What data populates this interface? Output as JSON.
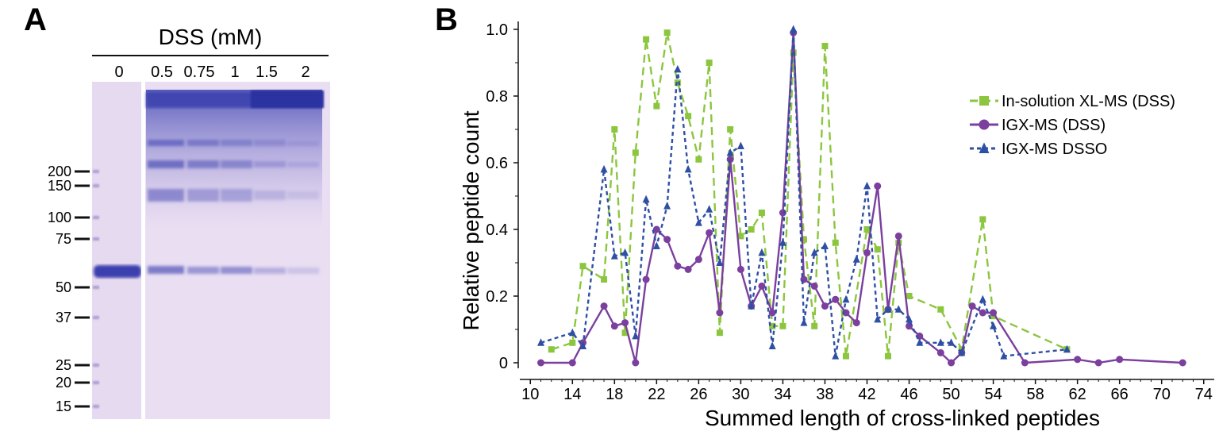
{
  "panels": {
    "a_label": "A",
    "b_label": "B"
  },
  "gel": {
    "title": "DSS (mM)",
    "lanes": [
      "0",
      "0.5",
      "0.75",
      "1",
      "1.5",
      "2"
    ],
    "markers": [
      "200",
      "150",
      "100",
      "75",
      "50",
      "37",
      "25",
      "20",
      "15"
    ],
    "colors": {
      "background": "#e9def2",
      "band": "#3b3fae"
    }
  },
  "chart_data": {
    "type": "line",
    "title": "",
    "xlabel": "Summed length of cross-linked peptides",
    "ylabel": "Relative peptide count",
    "xlim": [
      9,
      75
    ],
    "ylim": [
      0,
      1.0
    ],
    "xticks": [
      10,
      14,
      18,
      22,
      26,
      30,
      34,
      38,
      42,
      46,
      50,
      54,
      58,
      62,
      66,
      70,
      74
    ],
    "yticks": [
      0,
      0.2,
      0.4,
      0.6,
      0.8,
      1.0
    ],
    "ytick_labels": [
      "0",
      "0.2",
      "0.4",
      "0.6",
      "0.8",
      "1.0"
    ],
    "legend_position": "right",
    "series": [
      {
        "name": "In-solution XL-MS (DSS)",
        "color": "#8cc63f",
        "line": "long-dash",
        "marker": "square",
        "x": [
          12,
          14,
          15,
          17,
          18,
          19,
          20,
          21,
          22,
          23,
          24,
          25,
          26,
          27,
          28,
          29,
          30,
          31,
          32,
          33,
          34,
          35,
          36,
          37,
          38,
          39,
          40,
          42,
          43,
          44,
          45,
          46,
          49,
          51,
          53,
          54,
          61
        ],
        "y": [
          0.04,
          0.06,
          0.29,
          0.25,
          0.7,
          0.09,
          0.63,
          0.97,
          0.77,
          0.99,
          0.84,
          0.74,
          0.61,
          0.9,
          0.09,
          0.7,
          0.38,
          0.4,
          0.45,
          0.11,
          0.11,
          0.93,
          0.37,
          0.11,
          0.95,
          0.36,
          0.02,
          0.4,
          0.34,
          0.02,
          0.36,
          0.2,
          0.16,
          0.04,
          0.43,
          0.14,
          0.04
        ]
      },
      {
        "name": "IGX-MS (DSS)",
        "color": "#7b3f9e",
        "line": "solid",
        "marker": "circle",
        "x": [
          11,
          14,
          15,
          17,
          18,
          19,
          20,
          21,
          22,
          23,
          24,
          25,
          26,
          27,
          28,
          29,
          30,
          31,
          32,
          33,
          34,
          35,
          36,
          37,
          38,
          39,
          40,
          41,
          42,
          43,
          44,
          45,
          46,
          47,
          49,
          50,
          51,
          52,
          53,
          54,
          57,
          62,
          64,
          66,
          72
        ],
        "y": [
          0.0,
          0.0,
          0.06,
          0.17,
          0.11,
          0.12,
          0.0,
          0.25,
          0.4,
          0.37,
          0.29,
          0.28,
          0.31,
          0.39,
          0.15,
          0.61,
          0.28,
          0.17,
          0.23,
          0.15,
          0.45,
          0.99,
          0.25,
          0.23,
          0.17,
          0.19,
          0.15,
          0.12,
          0.33,
          0.53,
          0.16,
          0.38,
          0.11,
          0.08,
          0.03,
          0.0,
          0.03,
          0.17,
          0.15,
          0.15,
          0.0,
          0.01,
          0.0,
          0.01,
          0.0
        ]
      },
      {
        "name": "IGX-MS DSSO",
        "color": "#2e4fa3",
        "line": "short-dash",
        "marker": "triangle",
        "x": [
          11,
          14,
          15,
          17,
          18,
          19,
          20,
          21,
          22,
          23,
          24,
          25,
          26,
          27,
          28,
          29,
          30,
          31,
          32,
          33,
          34,
          35,
          36,
          37,
          38,
          39,
          40,
          41,
          42,
          43,
          44,
          45,
          46,
          47,
          49,
          50,
          51,
          53,
          54,
          55,
          61
        ],
        "y": [
          0.06,
          0.09,
          0.05,
          0.58,
          0.32,
          0.33,
          0.08,
          0.49,
          0.35,
          0.47,
          0.88,
          0.58,
          0.42,
          0.46,
          0.3,
          0.63,
          0.65,
          0.17,
          0.33,
          0.05,
          0.36,
          1.0,
          0.12,
          0.33,
          0.35,
          0.02,
          0.19,
          0.31,
          0.53,
          0.13,
          0.16,
          0.16,
          0.13,
          0.06,
          0.06,
          0.06,
          0.03,
          0.19,
          0.11,
          0.02,
          0.04
        ]
      }
    ]
  }
}
